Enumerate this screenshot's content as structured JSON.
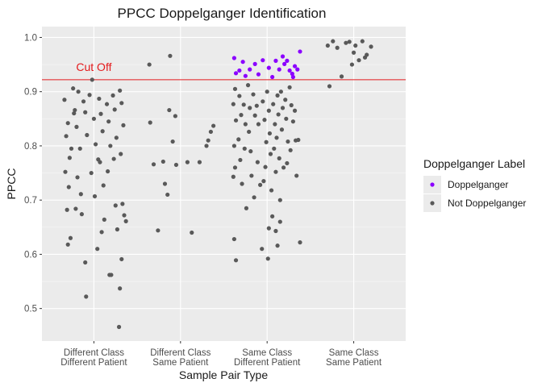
{
  "chart_data": {
    "type": "scatter",
    "title": "PPCC Doppelganger Identification",
    "xlabel": "Sample Pair Type",
    "ylabel": "PPCC",
    "ylim": [
      0.44,
      1.02
    ],
    "yticks": [
      0.5,
      0.6,
      0.7,
      0.8,
      0.9,
      1.0
    ],
    "ytick_labels": [
      "0.5",
      "0.6",
      "0.7",
      "0.8",
      "0.9",
      "1.0"
    ],
    "categories": [
      [
        "Different Class",
        "Different Patient"
      ],
      [
        "Different Class",
        "Same Patient"
      ],
      [
        "Same Class",
        "Different Patient"
      ],
      [
        "Same Class",
        "Same Patient"
      ]
    ],
    "cutoff": {
      "value": 0.922,
      "label": "Cut Off",
      "color": "#e41a1c"
    },
    "legend": {
      "title": "Doppelganger Label",
      "position": "right",
      "entries": [
        {
          "label": "Doppelganger",
          "color": "#8b00ff"
        },
        {
          "label": "Not Doppelganger",
          "color": "#595959"
        }
      ]
    },
    "grid": true,
    "panel_background": "#ebebeb",
    "series": [
      {
        "name": "Doppelganger",
        "color": "#8b00ff",
        "points": [
          {
            "cat": 2,
            "jitter": -0.38,
            "y": 0.962
          },
          {
            "cat": 2,
            "jitter": -0.32,
            "y": 0.939
          },
          {
            "cat": 2,
            "jitter": -0.36,
            "y": 0.934
          },
          {
            "cat": 2,
            "jitter": -0.28,
            "y": 0.955
          },
          {
            "cat": 2,
            "jitter": -0.2,
            "y": 0.941
          },
          {
            "cat": 2,
            "jitter": -0.14,
            "y": 0.951
          },
          {
            "cat": 2,
            "jitter": -0.1,
            "y": 0.932
          },
          {
            "cat": 2,
            "jitter": -0.05,
            "y": 0.958
          },
          {
            "cat": 2,
            "jitter": 0.02,
            "y": 0.944
          },
          {
            "cat": 2,
            "jitter": 0.06,
            "y": 0.927
          },
          {
            "cat": 2,
            "jitter": 0.1,
            "y": 0.957
          },
          {
            "cat": 2,
            "jitter": 0.14,
            "y": 0.941
          },
          {
            "cat": 2,
            "jitter": 0.18,
            "y": 0.965
          },
          {
            "cat": 2,
            "jitter": 0.2,
            "y": 0.951
          },
          {
            "cat": 2,
            "jitter": 0.23,
            "y": 0.957
          },
          {
            "cat": 2,
            "jitter": 0.26,
            "y": 0.939
          },
          {
            "cat": 2,
            "jitter": 0.29,
            "y": 0.933
          },
          {
            "cat": 2,
            "jitter": 0.32,
            "y": 0.947
          },
          {
            "cat": 2,
            "jitter": 0.35,
            "y": 0.941
          },
          {
            "cat": 2,
            "jitter": 0.38,
            "y": 0.974
          },
          {
            "cat": 2,
            "jitter": 0.3,
            "y": 0.927
          },
          {
            "cat": 2,
            "jitter": -0.25,
            "y": 0.929
          }
        ]
      },
      {
        "name": "Not Doppelganger",
        "color": "#595959",
        "points": [
          {
            "cat": 0,
            "jitter": -0.34,
            "y": 0.885
          },
          {
            "cat": 0,
            "jitter": -0.3,
            "y": 0.842
          },
          {
            "cat": 0,
            "jitter": -0.32,
            "y": 0.818
          },
          {
            "cat": 0,
            "jitter": -0.28,
            "y": 0.778
          },
          {
            "cat": 0,
            "jitter": -0.33,
            "y": 0.752
          },
          {
            "cat": 0,
            "jitter": -0.29,
            "y": 0.724
          },
          {
            "cat": 0,
            "jitter": -0.31,
            "y": 0.682
          },
          {
            "cat": 0,
            "jitter": -0.27,
            "y": 0.63
          },
          {
            "cat": 0,
            "jitter": -0.3,
            "y": 0.618
          },
          {
            "cat": 0,
            "jitter": -0.24,
            "y": 0.906
          },
          {
            "cat": 0,
            "jitter": -0.22,
            "y": 0.866
          },
          {
            "cat": 0,
            "jitter": -0.2,
            "y": 0.835
          },
          {
            "cat": 0,
            "jitter": -0.18,
            "y": 0.9
          },
          {
            "cat": 0,
            "jitter": -0.16,
            "y": 0.795
          },
          {
            "cat": 0,
            "jitter": -0.19,
            "y": 0.742
          },
          {
            "cat": 0,
            "jitter": -0.15,
            "y": 0.711
          },
          {
            "cat": 0,
            "jitter": -0.21,
            "y": 0.684
          },
          {
            "cat": 0,
            "jitter": -0.12,
            "y": 0.882
          },
          {
            "cat": 0,
            "jitter": -0.1,
            "y": 0.862
          },
          {
            "cat": 0,
            "jitter": -0.08,
            "y": 0.82
          },
          {
            "cat": 0,
            "jitter": -0.14,
            "y": 0.674
          },
          {
            "cat": 0,
            "jitter": -0.1,
            "y": 0.585
          },
          {
            "cat": 0,
            "jitter": -0.09,
            "y": 0.522
          },
          {
            "cat": 0,
            "jitter": -0.05,
            "y": 0.894
          },
          {
            "cat": 0,
            "jitter": -0.02,
            "y": 0.922
          },
          {
            "cat": 0,
            "jitter": 0.0,
            "y": 0.85
          },
          {
            "cat": 0,
            "jitter": 0.02,
            "y": 0.803
          },
          {
            "cat": 0,
            "jitter": -0.03,
            "y": 0.75
          },
          {
            "cat": 0,
            "jitter": 0.01,
            "y": 0.707
          },
          {
            "cat": 0,
            "jitter": 0.04,
            "y": 0.61
          },
          {
            "cat": 0,
            "jitter": 0.06,
            "y": 0.887
          },
          {
            "cat": 0,
            "jitter": 0.08,
            "y": 0.859
          },
          {
            "cat": 0,
            "jitter": 0.1,
            "y": 0.827
          },
          {
            "cat": 0,
            "jitter": 0.07,
            "y": 0.77
          },
          {
            "cat": 0,
            "jitter": 0.11,
            "y": 0.727
          },
          {
            "cat": 0,
            "jitter": 0.12,
            "y": 0.664
          },
          {
            "cat": 0,
            "jitter": 0.09,
            "y": 0.641
          },
          {
            "cat": 0,
            "jitter": 0.15,
            "y": 0.877
          },
          {
            "cat": 0,
            "jitter": 0.17,
            "y": 0.845
          },
          {
            "cat": 0,
            "jitter": 0.19,
            "y": 0.8
          },
          {
            "cat": 0,
            "jitter": 0.16,
            "y": 0.753
          },
          {
            "cat": 0,
            "jitter": 0.18,
            "y": 0.562
          },
          {
            "cat": 0,
            "jitter": 0.22,
            "y": 0.893
          },
          {
            "cat": 0,
            "jitter": 0.24,
            "y": 0.867
          },
          {
            "cat": 0,
            "jitter": 0.26,
            "y": 0.815
          },
          {
            "cat": 0,
            "jitter": 0.23,
            "y": 0.776
          },
          {
            "cat": 0,
            "jitter": 0.25,
            "y": 0.69
          },
          {
            "cat": 0,
            "jitter": 0.27,
            "y": 0.646
          },
          {
            "cat": 0,
            "jitter": 0.3,
            "y": 0.902
          },
          {
            "cat": 0,
            "jitter": 0.32,
            "y": 0.879
          },
          {
            "cat": 0,
            "jitter": 0.34,
            "y": 0.838
          },
          {
            "cat": 0,
            "jitter": 0.31,
            "y": 0.785
          },
          {
            "cat": 0,
            "jitter": 0.33,
            "y": 0.693
          },
          {
            "cat": 0,
            "jitter": 0.35,
            "y": 0.672
          },
          {
            "cat": 0,
            "jitter": 0.37,
            "y": 0.661
          },
          {
            "cat": 0,
            "jitter": 0.32,
            "y": 0.591
          },
          {
            "cat": 0,
            "jitter": 0.3,
            "y": 0.537
          },
          {
            "cat": 0,
            "jitter": 0.29,
            "y": 0.466
          },
          {
            "cat": 0,
            "jitter": -0.26,
            "y": 0.795
          },
          {
            "cat": 0,
            "jitter": -0.23,
            "y": 0.86
          },
          {
            "cat": 0,
            "jitter": 0.2,
            "y": 0.562
          },
          {
            "cat": 0,
            "jitter": 0.05,
            "y": 0.775
          },
          {
            "cat": 1,
            "jitter": -0.36,
            "y": 0.95
          },
          {
            "cat": 1,
            "jitter": -0.35,
            "y": 0.843
          },
          {
            "cat": 1,
            "jitter": -0.31,
            "y": 0.766
          },
          {
            "cat": 1,
            "jitter": -0.26,
            "y": 0.644
          },
          {
            "cat": 1,
            "jitter": -0.2,
            "y": 0.771
          },
          {
            "cat": 1,
            "jitter": -0.18,
            "y": 0.73
          },
          {
            "cat": 1,
            "jitter": -0.15,
            "y": 0.71
          },
          {
            "cat": 1,
            "jitter": -0.12,
            "y": 0.966
          },
          {
            "cat": 1,
            "jitter": -0.13,
            "y": 0.866
          },
          {
            "cat": 1,
            "jitter": -0.09,
            "y": 0.808
          },
          {
            "cat": 1,
            "jitter": -0.06,
            "y": 0.855
          },
          {
            "cat": 1,
            "jitter": -0.05,
            "y": 0.765
          },
          {
            "cat": 1,
            "jitter": 0.08,
            "y": 0.77
          },
          {
            "cat": 1,
            "jitter": 0.13,
            "y": 0.64
          },
          {
            "cat": 1,
            "jitter": 0.22,
            "y": 0.77
          },
          {
            "cat": 1,
            "jitter": 0.3,
            "y": 0.8
          },
          {
            "cat": 1,
            "jitter": 0.35,
            "y": 0.826
          },
          {
            "cat": 1,
            "jitter": 0.38,
            "y": 0.837
          },
          {
            "cat": 1,
            "jitter": 0.32,
            "y": 0.81
          },
          {
            "cat": 2,
            "jitter": -0.37,
            "y": 0.905
          },
          {
            "cat": 2,
            "jitter": -0.39,
            "y": 0.877
          },
          {
            "cat": 2,
            "jitter": -0.36,
            "y": 0.847
          },
          {
            "cat": 2,
            "jitter": -0.38,
            "y": 0.8
          },
          {
            "cat": 2,
            "jitter": -0.37,
            "y": 0.76
          },
          {
            "cat": 2,
            "jitter": -0.39,
            "y": 0.743
          },
          {
            "cat": 2,
            "jitter": -0.38,
            "y": 0.628
          },
          {
            "cat": 2,
            "jitter": -0.36,
            "y": 0.589
          },
          {
            "cat": 2,
            "jitter": -0.32,
            "y": 0.892
          },
          {
            "cat": 2,
            "jitter": -0.3,
            "y": 0.857
          },
          {
            "cat": 2,
            "jitter": -0.33,
            "y": 0.812
          },
          {
            "cat": 2,
            "jitter": -0.31,
            "y": 0.774
          },
          {
            "cat": 2,
            "jitter": -0.29,
            "y": 0.73
          },
          {
            "cat": 2,
            "jitter": -0.27,
            "y": 0.876
          },
          {
            "cat": 2,
            "jitter": -0.25,
            "y": 0.84
          },
          {
            "cat": 2,
            "jitter": -0.26,
            "y": 0.795
          },
          {
            "cat": 2,
            "jitter": -0.24,
            "y": 0.685
          },
          {
            "cat": 2,
            "jitter": -0.22,
            "y": 0.912
          },
          {
            "cat": 2,
            "jitter": -0.2,
            "y": 0.87
          },
          {
            "cat": 2,
            "jitter": -0.21,
            "y": 0.826
          },
          {
            "cat": 2,
            "jitter": -0.19,
            "y": 0.79
          },
          {
            "cat": 2,
            "jitter": -0.18,
            "y": 0.745
          },
          {
            "cat": 2,
            "jitter": -0.16,
            "y": 0.895
          },
          {
            "cat": 2,
            "jitter": -0.14,
            "y": 0.856
          },
          {
            "cat": 2,
            "jitter": -0.15,
            "y": 0.705
          },
          {
            "cat": 2,
            "jitter": -0.12,
            "y": 0.874
          },
          {
            "cat": 2,
            "jitter": -0.1,
            "y": 0.84
          },
          {
            "cat": 2,
            "jitter": -0.11,
            "y": 0.77
          },
          {
            "cat": 2,
            "jitter": -0.08,
            "y": 0.728
          },
          {
            "cat": 2,
            "jitter": -0.06,
            "y": 0.61
          },
          {
            "cat": 2,
            "jitter": -0.05,
            "y": 0.882
          },
          {
            "cat": 2,
            "jitter": -0.03,
            "y": 0.848
          },
          {
            "cat": 2,
            "jitter": -0.01,
            "y": 0.807
          },
          {
            "cat": 2,
            "jitter": -0.02,
            "y": 0.761
          },
          {
            "cat": 2,
            "jitter": 0.0,
            "y": 0.9
          },
          {
            "cat": 2,
            "jitter": 0.02,
            "y": 0.865
          },
          {
            "cat": 2,
            "jitter": 0.03,
            "y": 0.823
          },
          {
            "cat": 2,
            "jitter": 0.04,
            "y": 0.785
          },
          {
            "cat": 2,
            "jitter": 0.01,
            "y": 0.592
          },
          {
            "cat": 2,
            "jitter": 0.05,
            "y": 0.718
          },
          {
            "cat": 2,
            "jitter": 0.07,
            "y": 0.877
          },
          {
            "cat": 2,
            "jitter": 0.09,
            "y": 0.84
          },
          {
            "cat": 2,
            "jitter": 0.08,
            "y": 0.795
          },
          {
            "cat": 2,
            "jitter": 0.1,
            "y": 0.752
          },
          {
            "cat": 2,
            "jitter": 0.06,
            "y": 0.67
          },
          {
            "cat": 2,
            "jitter": 0.12,
            "y": 0.893
          },
          {
            "cat": 2,
            "jitter": 0.13,
            "y": 0.858
          },
          {
            "cat": 2,
            "jitter": 0.11,
            "y": 0.815
          },
          {
            "cat": 2,
            "jitter": 0.14,
            "y": 0.777
          },
          {
            "cat": 2,
            "jitter": 0.1,
            "y": 0.643
          },
          {
            "cat": 2,
            "jitter": 0.12,
            "y": 0.616
          },
          {
            "cat": 2,
            "jitter": 0.16,
            "y": 0.9
          },
          {
            "cat": 2,
            "jitter": 0.18,
            "y": 0.87
          },
          {
            "cat": 2,
            "jitter": 0.17,
            "y": 0.83
          },
          {
            "cat": 2,
            "jitter": 0.19,
            "y": 0.76
          },
          {
            "cat": 2,
            "jitter": 0.15,
            "y": 0.7
          },
          {
            "cat": 2,
            "jitter": 0.15,
            "y": 0.66
          },
          {
            "cat": 2,
            "jitter": 0.21,
            "y": 0.885
          },
          {
            "cat": 2,
            "jitter": 0.22,
            "y": 0.85
          },
          {
            "cat": 2,
            "jitter": 0.24,
            "y": 0.808
          },
          {
            "cat": 2,
            "jitter": 0.23,
            "y": 0.768
          },
          {
            "cat": 2,
            "jitter": 0.26,
            "y": 0.908
          },
          {
            "cat": 2,
            "jitter": 0.28,
            "y": 0.875
          },
          {
            "cat": 2,
            "jitter": 0.3,
            "y": 0.845
          },
          {
            "cat": 2,
            "jitter": 0.32,
            "y": 0.865
          },
          {
            "cat": 2,
            "jitter": 0.33,
            "y": 0.81
          },
          {
            "cat": 2,
            "jitter": 0.36,
            "y": 0.811
          },
          {
            "cat": 2,
            "jitter": 0.38,
            "y": 0.622
          },
          {
            "cat": 2,
            "jitter": 0.34,
            "y": 0.745
          },
          {
            "cat": 2,
            "jitter": 0.02,
            "y": 0.648
          },
          {
            "cat": 2,
            "jitter": -0.04,
            "y": 0.735
          },
          {
            "cat": 2,
            "jitter": 0.27,
            "y": 0.792
          },
          {
            "cat": 3,
            "jitter": -0.3,
            "y": 0.985
          },
          {
            "cat": 3,
            "jitter": -0.28,
            "y": 0.91
          },
          {
            "cat": 3,
            "jitter": -0.24,
            "y": 0.993
          },
          {
            "cat": 3,
            "jitter": -0.19,
            "y": 0.981
          },
          {
            "cat": 3,
            "jitter": -0.14,
            "y": 0.928
          },
          {
            "cat": 3,
            "jitter": -0.09,
            "y": 0.99
          },
          {
            "cat": 3,
            "jitter": -0.05,
            "y": 0.992
          },
          {
            "cat": 3,
            "jitter": -0.02,
            "y": 0.95
          },
          {
            "cat": 3,
            "jitter": 0.0,
            "y": 0.972
          },
          {
            "cat": 3,
            "jitter": 0.02,
            "y": 0.985
          },
          {
            "cat": 3,
            "jitter": 0.06,
            "y": 0.958
          },
          {
            "cat": 3,
            "jitter": 0.1,
            "y": 0.993
          },
          {
            "cat": 3,
            "jitter": 0.13,
            "y": 0.963
          },
          {
            "cat": 3,
            "jitter": 0.15,
            "y": 0.968
          },
          {
            "cat": 3,
            "jitter": 0.2,
            "y": 0.983
          }
        ]
      }
    ]
  }
}
